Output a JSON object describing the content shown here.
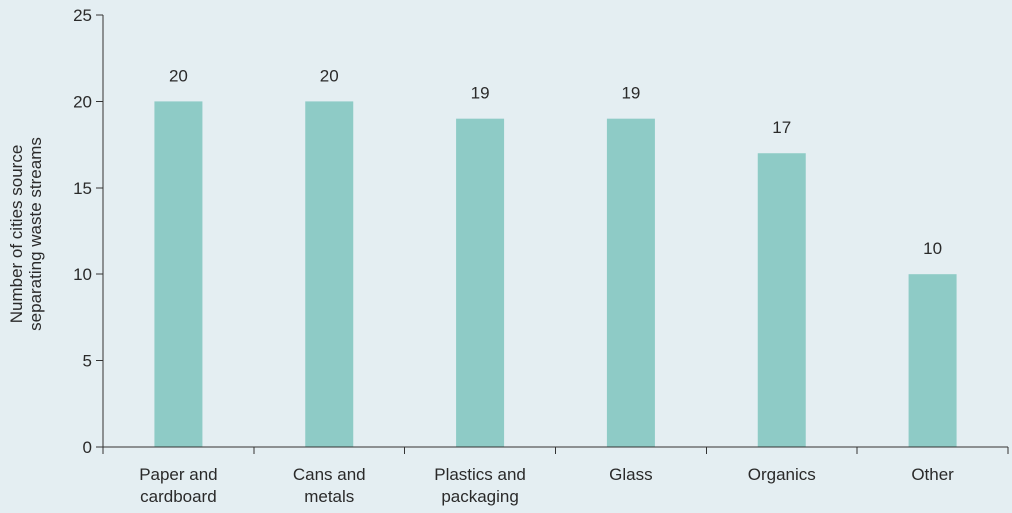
{
  "chart_data": {
    "type": "bar",
    "categories": [
      [
        "Paper and",
        "cardboard"
      ],
      [
        "Cans and",
        "metals"
      ],
      [
        "Plastics and",
        "packaging"
      ],
      [
        "Glass"
      ],
      [
        "Organics"
      ],
      [
        "Other"
      ]
    ],
    "values": [
      20,
      20,
      19,
      19,
      17,
      10
    ],
    "data_labels": [
      "20",
      "20",
      "19",
      "19",
      "17",
      "10"
    ],
    "ylabel": [
      "Number of cities source",
      "separating waste streams"
    ],
    "xlabel": "",
    "title": "",
    "ylim": [
      0,
      25
    ],
    "yticks": [
      0,
      5,
      10,
      15,
      20,
      25
    ],
    "ytick_labels": [
      "0",
      "5",
      "10",
      "15",
      "20",
      "25"
    ],
    "grid": false,
    "colors": {
      "bar": "#8ecbc6",
      "background": "#e4eef2",
      "axis": "#333333",
      "text": "#2a2a2a"
    }
  }
}
